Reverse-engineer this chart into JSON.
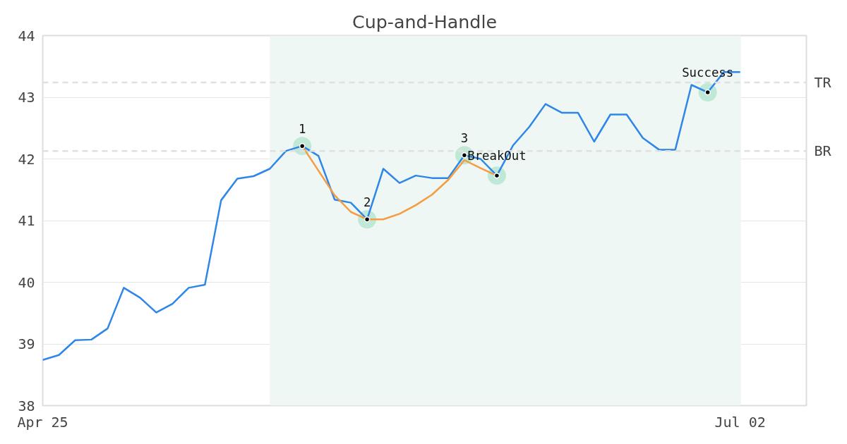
{
  "chart_data": {
    "type": "line",
    "title": "Cup-and-Handle",
    "categories": [
      "Apr 25",
      null,
      null,
      null,
      null,
      null,
      null,
      null,
      null,
      null,
      null,
      null,
      null,
      null,
      null,
      null,
      null,
      null,
      null,
      null,
      null,
      null,
      null,
      null,
      null,
      null,
      null,
      null,
      null,
      null,
      null,
      null,
      null,
      null,
      null,
      null,
      null,
      null,
      null,
      null,
      null,
      null,
      null,
      "Jul 02"
    ],
    "ylim": [
      38,
      44
    ],
    "yticks": [
      38,
      39,
      40,
      41,
      42,
      43,
      44
    ],
    "grid": "y",
    "line_style": "solid",
    "series": [
      {
        "color": "#2e86e8",
        "values": [
          38.74,
          38.82,
          39.06,
          39.07,
          39.25,
          39.91,
          39.75,
          39.51,
          39.65,
          39.91,
          39.96,
          41.33,
          41.68,
          41.72,
          41.84,
          42.13,
          42.21,
          42.05,
          41.34,
          41.29,
          41.02,
          41.84,
          41.61,
          41.73,
          41.69,
          41.69,
          42.06,
          42.0,
          41.73,
          42.22,
          42.52,
          42.89,
          42.75,
          42.75,
          42.28,
          42.72,
          42.72,
          42.34,
          42.15,
          42.15,
          43.2,
          43.08,
          43.41,
          43.41
        ]
      },
      {
        "color": "#f59c42",
        "values": [
          null,
          null,
          null,
          null,
          null,
          null,
          null,
          null,
          null,
          null,
          null,
          null,
          null,
          null,
          null,
          null,
          42.21,
          41.81,
          41.41,
          41.14,
          41.02,
          41.02,
          41.11,
          41.25,
          41.42,
          41.66,
          41.98,
          41.85,
          41.73,
          null,
          null,
          null,
          null,
          null,
          null,
          null,
          null,
          null,
          null,
          null,
          null,
          null,
          null,
          null
        ]
      },
      {
        "type": "scatter",
        "color": "#bfe9d6",
        "values": [
          null,
          null,
          null,
          null,
          null,
          null,
          null,
          null,
          null,
          null,
          null,
          null,
          null,
          null,
          null,
          null,
          42.21,
          null,
          null,
          null,
          41.02,
          null,
          null,
          null,
          null,
          null,
          42.06,
          null,
          41.73,
          null,
          null,
          null,
          null,
          null,
          null,
          null,
          null,
          null,
          null,
          null,
          null,
          43.08,
          null,
          null
        ]
      }
    ],
    "ref_lines": [
      {
        "axis": "y",
        "value": 43.24,
        "label": "TR",
        "color": "#e0e0e0",
        "line_style": "dashed"
      },
      {
        "axis": "y",
        "value": 42.13,
        "label": "BR",
        "color": "#e0e0e0",
        "line_style": "dashed"
      }
    ],
    "annotations": [
      "1",
      "2",
      "3",
      "BreakOut",
      "Success"
    ]
  }
}
